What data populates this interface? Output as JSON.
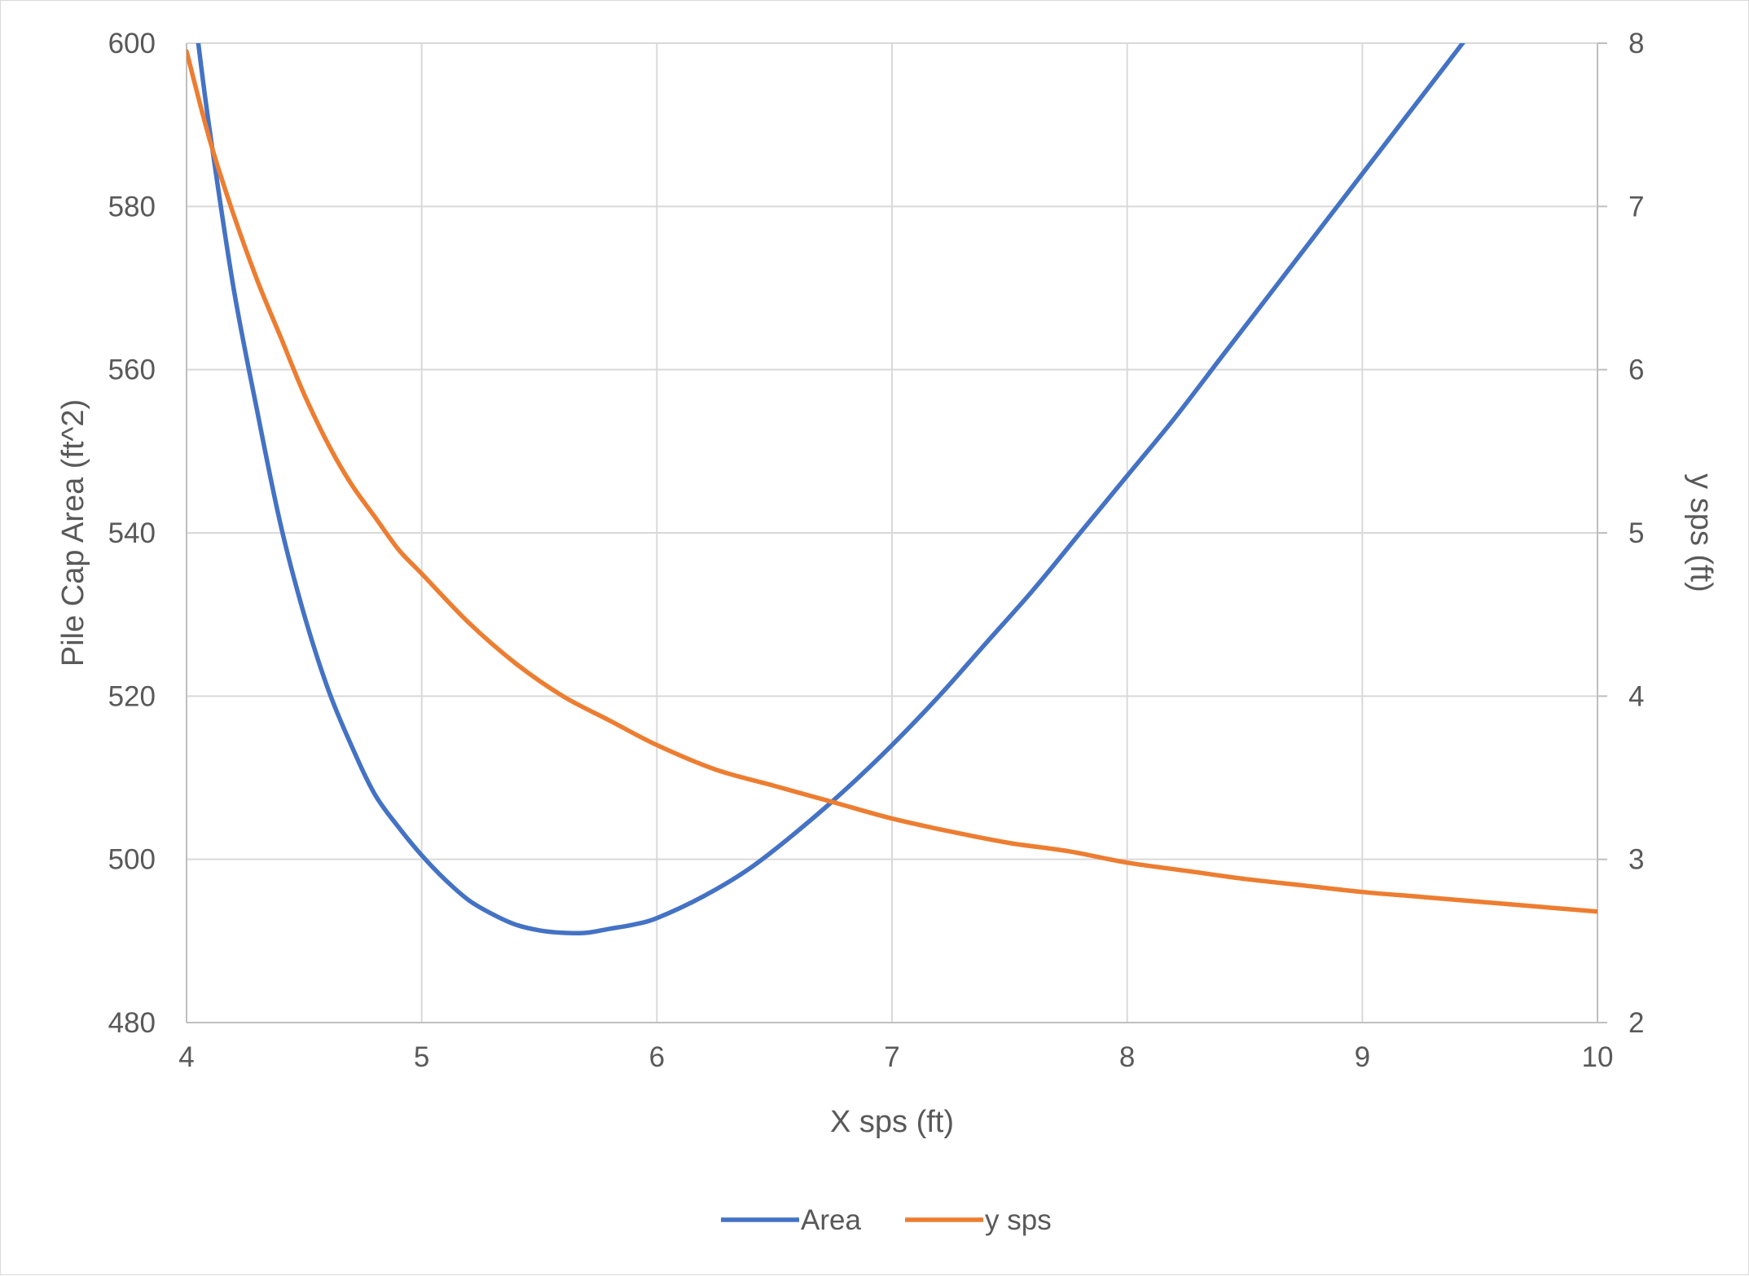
{
  "chart_data": {
    "type": "line",
    "title": "",
    "xlabel": "X sps (ft)",
    "ylabel": "Pile Cap Area (ft^2)",
    "y2label": "y sps (ft)",
    "xlim": [
      4,
      10
    ],
    "ylim": [
      480,
      600
    ],
    "y2lim": [
      2,
      8
    ],
    "xticks": [
      "4",
      "5",
      "6",
      "7",
      "8",
      "9",
      "10"
    ],
    "yticks": [
      "480",
      "500",
      "520",
      "540",
      "560",
      "580",
      "600"
    ],
    "y2ticks": [
      "2",
      "3",
      "4",
      "5",
      "6",
      "7",
      "8"
    ],
    "grid": true,
    "legend_position": "bottom",
    "series": [
      {
        "name": "Area",
        "axis": "left",
        "color": "#4472c4",
        "x": [
          4.05,
          4.1,
          4.2,
          4.3,
          4.4,
          4.5,
          4.6,
          4.7,
          4.8,
          4.9,
          5.0,
          5.1,
          5.2,
          5.3,
          5.4,
          5.5,
          5.6,
          5.7,
          5.8,
          5.9,
          6.0,
          6.2,
          6.4,
          6.6,
          6.8,
          7.0,
          7.2,
          7.4,
          7.6,
          7.8,
          8.0,
          8.2,
          8.4,
          8.6,
          8.8,
          9.0,
          9.2,
          9.4,
          9.6,
          9.7
        ],
        "y": [
          600.0,
          589.0,
          570.0,
          555.0,
          541.0,
          530.0,
          521.0,
          514.0,
          508.0,
          504.0,
          500.5,
          497.5,
          495.0,
          493.3,
          492.0,
          491.3,
          491.0,
          491.0,
          491.5,
          492.0,
          492.8,
          495.5,
          499.0,
          503.5,
          508.5,
          514.0,
          520.0,
          526.5,
          533.0,
          540.0,
          547.0,
          554.0,
          561.5,
          569.0,
          576.5,
          584.0,
          591.5,
          599.0,
          606.5,
          610.0
        ]
      },
      {
        "name": "y sps",
        "axis": "right",
        "color": "#ed7d31",
        "x": [
          4.0,
          4.1,
          4.2,
          4.3,
          4.4,
          4.5,
          4.6,
          4.7,
          4.8,
          4.9,
          5.0,
          5.2,
          5.4,
          5.6,
          5.8,
          6.0,
          6.25,
          6.5,
          6.75,
          7.0,
          7.25,
          7.5,
          7.75,
          8.0,
          8.25,
          8.5,
          8.75,
          9.0,
          9.25,
          9.5,
          9.75,
          10.0
        ],
        "y": [
          7.95,
          7.4,
          6.95,
          6.55,
          6.2,
          5.85,
          5.55,
          5.3,
          5.1,
          4.9,
          4.75,
          4.45,
          4.2,
          4.0,
          3.85,
          3.7,
          3.55,
          3.45,
          3.35,
          3.25,
          3.17,
          3.1,
          3.05,
          2.98,
          2.93,
          2.88,
          2.84,
          2.8,
          2.77,
          2.74,
          2.71,
          2.68
        ]
      }
    ]
  }
}
